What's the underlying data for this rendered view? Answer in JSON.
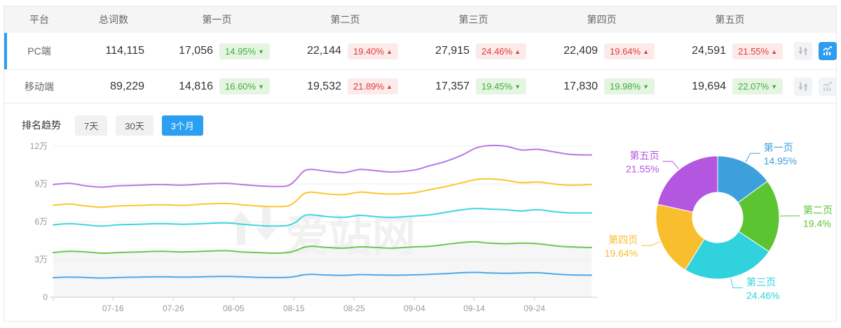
{
  "table": {
    "headers": [
      "平台",
      "总词数",
      "第一页",
      "第二页",
      "第三页",
      "第四页",
      "第五页"
    ],
    "rows": [
      {
        "platform": "PC端",
        "total": "114,115",
        "selected": true,
        "chart_active": true,
        "pages": [
          {
            "count": "17,056",
            "pct": "14.95%",
            "dir": "down",
            "arrow": "▼"
          },
          {
            "count": "22,144",
            "pct": "19.40%",
            "dir": "up",
            "arrow": "▲"
          },
          {
            "count": "27,915",
            "pct": "24.46%",
            "dir": "up",
            "arrow": "▲"
          },
          {
            "count": "22,409",
            "pct": "19.64%",
            "dir": "up",
            "arrow": "▲"
          },
          {
            "count": "24,591",
            "pct": "21.55%",
            "dir": "up",
            "arrow": "▲"
          }
        ]
      },
      {
        "platform": "移动端",
        "total": "89,229",
        "selected": false,
        "chart_active": false,
        "pages": [
          {
            "count": "14,816",
            "pct": "16.60%",
            "dir": "down",
            "arrow": "▼"
          },
          {
            "count": "19,532",
            "pct": "21.89%",
            "dir": "up",
            "arrow": "▲"
          },
          {
            "count": "17,357",
            "pct": "19.45%",
            "dir": "down",
            "arrow": "▼"
          },
          {
            "count": "17,830",
            "pct": "19.98%",
            "dir": "down",
            "arrow": "▼"
          },
          {
            "count": "19,694",
            "pct": "22.07%",
            "dir": "down",
            "arrow": "▼"
          }
        ]
      }
    ]
  },
  "trend": {
    "label": "排名趋势",
    "tabs": [
      {
        "label": "7天",
        "active": false
      },
      {
        "label": "30天",
        "active": false
      },
      {
        "label": "3个月",
        "active": true
      }
    ]
  },
  "watermark": "爱站网",
  "colors": {
    "accent_blue": "#2D9CF0",
    "up_red": "#E23B3B",
    "down_green": "#3EAE3E",
    "badge_red_bg": "#FCEBEB",
    "badge_green_bg": "#E6F5E2",
    "header_bg": "#F5F5F5",
    "border": "#E9E9E9",
    "axis_text": "#999999"
  },
  "chart_data": [
    {
      "type": "line",
      "title": "排名趋势 3个月 (PC端)",
      "stacked": true,
      "unit": "万",
      "y_max": 12,
      "y_ticks": [
        {
          "label": "0",
          "v": 0
        },
        {
          "label": "3万",
          "v": 3
        },
        {
          "label": "6万",
          "v": 6
        },
        {
          "label": "9万",
          "v": 9
        },
        {
          "label": "12万",
          "v": 12
        }
      ],
      "x_ticks": [
        {
          "label": "07-16",
          "t": 0.111
        },
        {
          "label": "07-26",
          "t": 0.223
        },
        {
          "label": "08-05",
          "t": 0.335
        },
        {
          "label": "08-15",
          "t": 0.447
        },
        {
          "label": "08-25",
          "t": 0.559
        },
        {
          "label": "09-04",
          "t": 0.671
        },
        {
          "label": "09-14",
          "t": 0.782
        },
        {
          "label": "09-24",
          "t": 0.894
        }
      ],
      "t": [
        0,
        0.03,
        0.06,
        0.09,
        0.12,
        0.16,
        0.2,
        0.24,
        0.28,
        0.32,
        0.35,
        0.38,
        0.41,
        0.435,
        0.45,
        0.465,
        0.48,
        0.51,
        0.54,
        0.57,
        0.6,
        0.63,
        0.67,
        0.7,
        0.73,
        0.76,
        0.785,
        0.81,
        0.84,
        0.87,
        0.9,
        0.93,
        0.96,
        1.0
      ],
      "series": [
        {
          "name": "第一页",
          "color": "#4FA8EA",
          "cum": [
            1.55,
            1.6,
            1.57,
            1.53,
            1.56,
            1.6,
            1.62,
            1.6,
            1.63,
            1.65,
            1.62,
            1.58,
            1.56,
            1.58,
            1.65,
            1.78,
            1.82,
            1.76,
            1.74,
            1.8,
            1.77,
            1.75,
            1.78,
            1.82,
            1.88,
            1.95,
            1.97,
            1.93,
            1.9,
            1.93,
            1.95,
            1.85,
            1.78,
            1.75
          ]
        },
        {
          "name": "第二页",
          "color": "#66C94F",
          "area": "#f6f6f6",
          "cum": [
            3.55,
            3.65,
            3.6,
            3.5,
            3.55,
            3.6,
            3.65,
            3.6,
            3.65,
            3.7,
            3.6,
            3.55,
            3.5,
            3.55,
            3.7,
            3.95,
            4.05,
            3.95,
            3.9,
            4.0,
            3.95,
            3.9,
            4.0,
            4.05,
            4.2,
            4.35,
            4.4,
            4.3,
            4.25,
            4.3,
            4.25,
            4.1,
            4.0,
            3.95
          ]
        },
        {
          "name": "第三页",
          "color": "#3ED5E0",
          "cum": [
            5.75,
            5.85,
            5.75,
            5.65,
            5.75,
            5.8,
            5.85,
            5.8,
            5.85,
            5.9,
            5.8,
            5.7,
            5.65,
            5.7,
            5.95,
            6.45,
            6.55,
            6.4,
            6.35,
            6.5,
            6.4,
            6.35,
            6.45,
            6.55,
            6.75,
            6.95,
            7.05,
            7.0,
            6.95,
            6.85,
            6.95,
            6.8,
            6.7,
            6.7
          ]
        },
        {
          "name": "第四页",
          "color": "#FBC62F",
          "cum": [
            7.3,
            7.4,
            7.25,
            7.15,
            7.25,
            7.3,
            7.35,
            7.3,
            7.4,
            7.45,
            7.35,
            7.25,
            7.2,
            7.25,
            7.6,
            8.2,
            8.35,
            8.2,
            8.15,
            8.35,
            8.25,
            8.2,
            8.3,
            8.55,
            8.8,
            9.1,
            9.35,
            9.4,
            9.3,
            9.1,
            9.15,
            9.0,
            8.9,
            8.95
          ]
        },
        {
          "name": "第五页",
          "color": "#B679E8",
          "cum": [
            8.95,
            9.05,
            8.85,
            8.75,
            8.85,
            8.9,
            8.95,
            8.9,
            9.0,
            9.05,
            8.95,
            8.85,
            8.8,
            8.85,
            9.3,
            10.0,
            10.15,
            10.0,
            9.9,
            10.15,
            10.05,
            9.95,
            10.1,
            10.45,
            10.8,
            11.3,
            11.85,
            12.05,
            12.0,
            11.7,
            11.75,
            11.55,
            11.35,
            11.3
          ]
        }
      ],
      "note": "values are cumulative stacked keyword counts in 万 (10k)"
    },
    {
      "type": "pie",
      "subtype": "donut",
      "inner_radius": 36,
      "outer_radius": 88,
      "slices": [
        {
          "label": "第一页",
          "value": 14.95,
          "pct_label": "14.95%",
          "color": "#3DA0DC"
        },
        {
          "label": "第二页",
          "value": 19.4,
          "pct_label": "19.4%",
          "color": "#5CC431"
        },
        {
          "label": "第三页",
          "value": 24.46,
          "pct_label": "24.46%",
          "color": "#30D2DE"
        },
        {
          "label": "第四页",
          "value": 19.64,
          "pct_label": "19.64%",
          "color": "#F8BE2D"
        },
        {
          "label": "第五页",
          "value": 21.55,
          "pct_label": "21.55%",
          "color": "#B457E0"
        }
      ]
    }
  ]
}
